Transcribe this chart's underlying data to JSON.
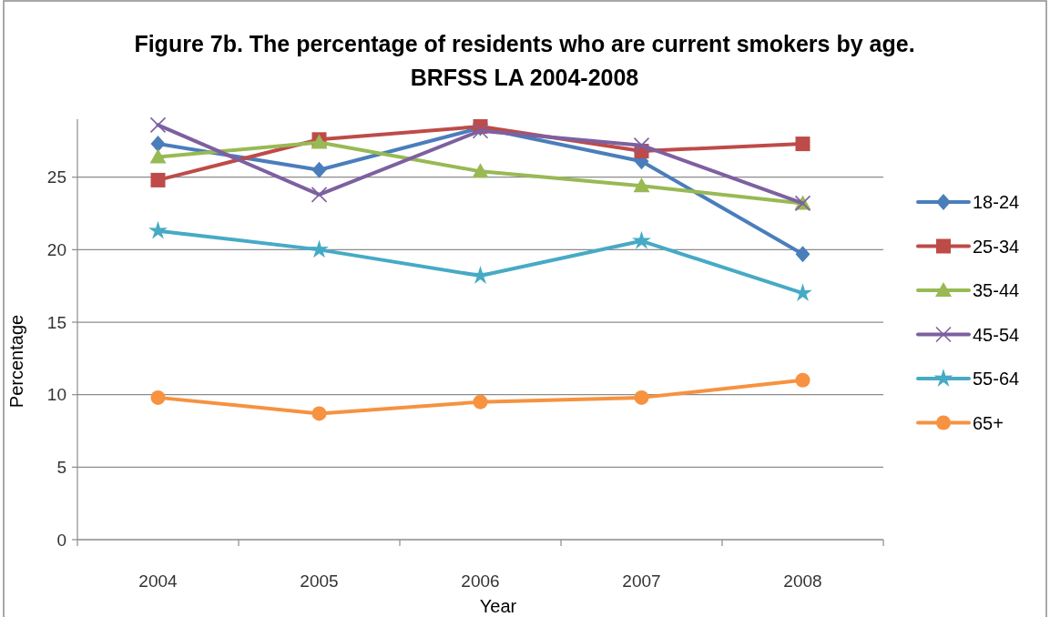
{
  "chart_data": {
    "type": "line",
    "title": "Figure 7b. The percentage of residents who are current smokers by age.\nBRFSS LA 2004-2008",
    "xlabel": "Year",
    "ylabel": "Percentage",
    "categories": [
      "2004",
      "2005",
      "2006",
      "2007",
      "2008"
    ],
    "series": [
      {
        "name": "18-24",
        "color": "#4a7ebb",
        "marker": "diamond",
        "values": [
          27.3,
          25.5,
          28.4,
          26.1,
          19.7
        ]
      },
      {
        "name": "25-34",
        "color": "#be4b48",
        "marker": "square",
        "values": [
          24.8,
          27.6,
          28.5,
          26.8,
          27.3
        ]
      },
      {
        "name": "35-44",
        "color": "#98b954",
        "marker": "triangle",
        "values": [
          26.4,
          27.4,
          25.4,
          24.4,
          23.2
        ]
      },
      {
        "name": "45-54",
        "color": "#7d60a0",
        "marker": "cross",
        "values": [
          28.6,
          23.8,
          28.2,
          27.2,
          23.2
        ]
      },
      {
        "name": "55-64",
        "color": "#46aac5",
        "marker": "star",
        "values": [
          21.3,
          20.0,
          18.2,
          20.6,
          17.0
        ]
      },
      {
        "name": "65+",
        "color": "#f69240",
        "marker": "circle",
        "values": [
          9.8,
          8.7,
          9.5,
          9.8,
          11.0
        ]
      }
    ],
    "ylim": [
      0,
      29
    ],
    "yticks": [
      0,
      5,
      10,
      15,
      20,
      25
    ],
    "grid": "y",
    "legend": "right",
    "line_style": "solid"
  }
}
